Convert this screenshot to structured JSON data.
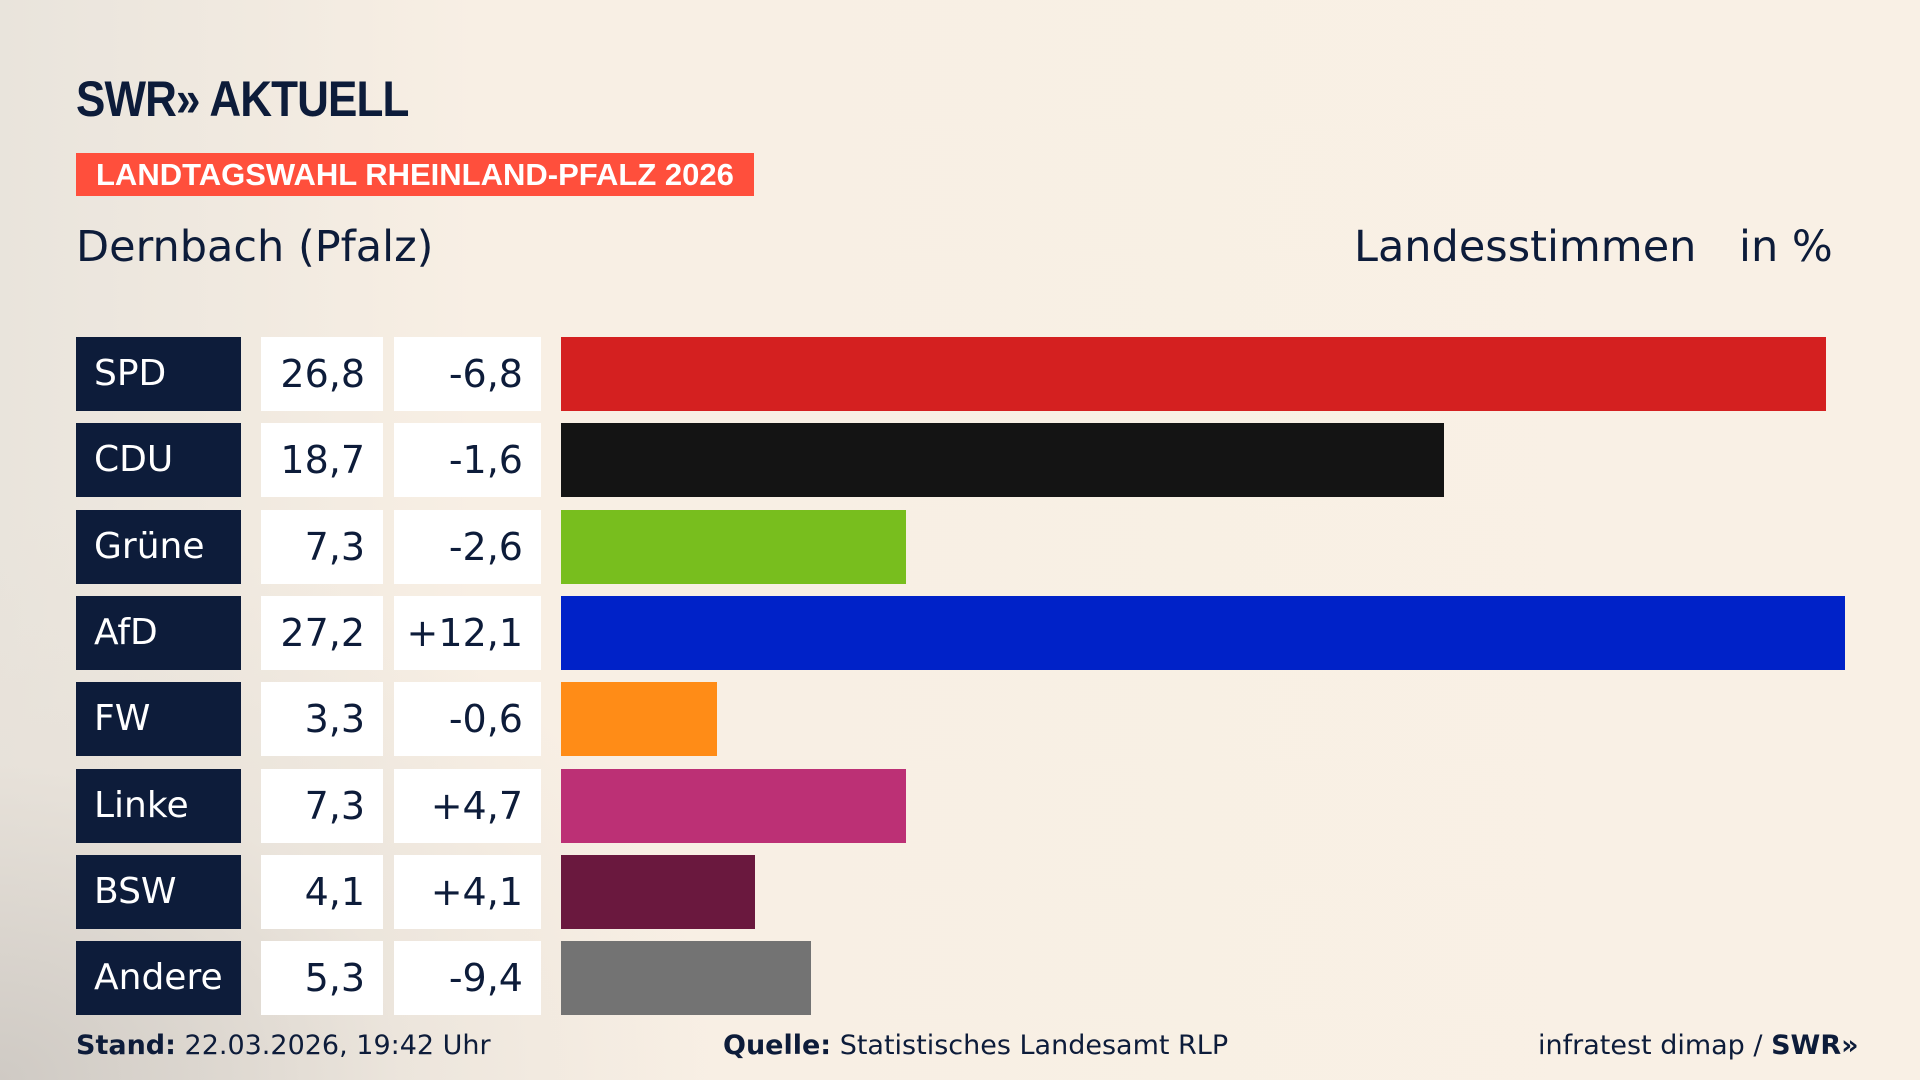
{
  "header": {
    "logo": "SWR» AKTUELL",
    "banner": "LANDTAGSWAHL RHEINLAND-PFALZ 2026",
    "region": "Dernbach (Pfalz)",
    "vote_type": "Landesstimmen",
    "unit": "in %"
  },
  "chart_data": {
    "type": "bar",
    "orientation": "horizontal",
    "categories": [
      "SPD",
      "CDU",
      "Grüne",
      "AfD",
      "FW",
      "Linke",
      "BSW",
      "Andere"
    ],
    "values": [
      26.8,
      18.7,
      7.3,
      27.2,
      3.3,
      7.3,
      4.1,
      5.3
    ],
    "value_labels": [
      "26,8",
      "18,7",
      "7,3",
      "27,2",
      "3,3",
      "7,3",
      "4,1",
      "5,3"
    ],
    "diff_labels": [
      "-6,8",
      "-1,6",
      "-2,6",
      "+12,1",
      "-0,6",
      "+4,7",
      "+4,1",
      "-9,4"
    ],
    "diffs": [
      -6.8,
      -1.6,
      -2.6,
      12.1,
      -0.6,
      4.7,
      4.1,
      -9.4
    ],
    "colors": [
      "#d42020",
      "#141414",
      "#78be1e",
      "#0022c8",
      "#ff8c17",
      "#bc3075",
      "#6a183e",
      "#737373"
    ],
    "xlim": [
      0,
      27.2
    ],
    "grid": false
  },
  "footer": {
    "stand_label": "Stand:",
    "stand_value": "22.03.2026, 19:42 Uhr",
    "source_label": "Quelle:",
    "source_value": "Statistisches Landesamt RLP",
    "credit": "infratest dimap / ",
    "credit_logo": "SWR»"
  }
}
